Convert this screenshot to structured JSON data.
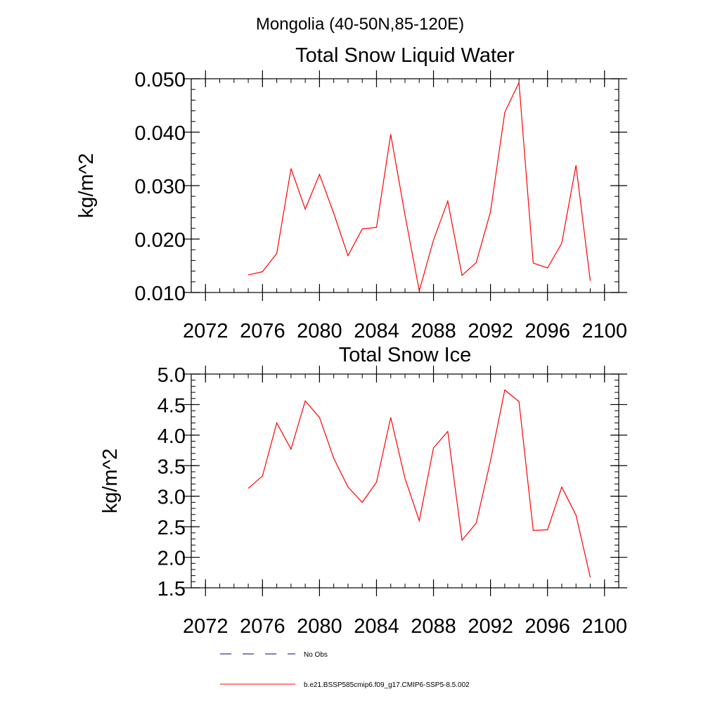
{
  "figure": {
    "suptitle": "Mongolia (40-50N,85-120E)"
  },
  "chart_data": [
    {
      "type": "line",
      "title": "Total Snow Liquid Water",
      "ylabel": "kg/m^2",
      "xlabel": "",
      "xlim": [
        2071,
        2101
      ],
      "ylim": [
        0.01,
        0.05
      ],
      "xticks": [
        2072,
        2076,
        2080,
        2084,
        2088,
        2092,
        2096,
        2100
      ],
      "xtick_labels": [
        "2072",
        "2076",
        "2080",
        "2084",
        "2088",
        "2092",
        "2096",
        "2100"
      ],
      "yticks": [
        0.01,
        0.02,
        0.03,
        0.04,
        0.05
      ],
      "ytick_labels": [
        "0.010",
        "0.020",
        "0.030",
        "0.040",
        "0.050"
      ],
      "x": [
        2075,
        2076,
        2077,
        2078,
        2079,
        2080,
        2081,
        2082,
        2083,
        2084,
        2085,
        2086,
        2087,
        2088,
        2089,
        2090,
        2091,
        2092,
        2093,
        2094,
        2095,
        2096,
        2097,
        2098,
        2099
      ],
      "series": [
        {
          "name": "b.e21.BSSP585cmip6.f09_g17.CMIP6-SSP5-8.5.002",
          "color": "#ff0000",
          "values": [
            0.0133,
            0.0139,
            0.0173,
            0.0332,
            0.0256,
            0.0321,
            0.0248,
            0.0169,
            0.0219,
            0.0222,
            0.0396,
            0.0245,
            0.0103,
            0.0198,
            0.0271,
            0.0132,
            0.0156,
            0.0251,
            0.0437,
            0.0493,
            0.0155,
            0.0146,
            0.0192,
            0.0338,
            0.0122
          ]
        }
      ]
    },
    {
      "type": "line",
      "title": "Total Snow Ice",
      "ylabel": "kg/m^2",
      "xlabel": "",
      "xlim": [
        2071,
        2101
      ],
      "ylim": [
        1.5,
        5.0
      ],
      "xticks": [
        2072,
        2076,
        2080,
        2084,
        2088,
        2092,
        2096,
        2100
      ],
      "xtick_labels": [
        "2072",
        "2076",
        "2080",
        "2084",
        "2088",
        "2092",
        "2096",
        "2100"
      ],
      "yticks": [
        1.5,
        2.0,
        2.5,
        3.0,
        3.5,
        4.0,
        4.5,
        5.0
      ],
      "ytick_labels": [
        "1.5",
        "2.0",
        "2.5",
        "3.0",
        "3.5",
        "4.0",
        "4.5",
        "5.0"
      ],
      "x": [
        2075,
        2076,
        2077,
        2078,
        2079,
        2080,
        2081,
        2082,
        2083,
        2084,
        2085,
        2086,
        2087,
        2088,
        2089,
        2090,
        2091,
        2092,
        2093,
        2094,
        2095,
        2096,
        2097,
        2098,
        2099
      ],
      "series": [
        {
          "name": "b.e21.BSSP585cmip6.f09_g17.CMIP6-SSP5-8.5.002",
          "color": "#ff0000",
          "values": [
            3.13,
            3.33,
            4.2,
            3.77,
            4.56,
            4.29,
            3.62,
            3.15,
            2.9,
            3.23,
            4.29,
            3.29,
            2.6,
            3.79,
            4.06,
            2.28,
            2.56,
            3.58,
            4.74,
            4.55,
            2.44,
            2.45,
            3.15,
            2.69,
            1.67
          ]
        }
      ]
    }
  ],
  "legend": {
    "entries": [
      {
        "label": "No Obs",
        "style": "dashed",
        "color": "#000080"
      },
      {
        "label": "b.e21.BSSP585cmip6.f09_g17.CMIP6-SSP5-8.5.002",
        "style": "solid",
        "color": "#ff0000"
      }
    ]
  }
}
